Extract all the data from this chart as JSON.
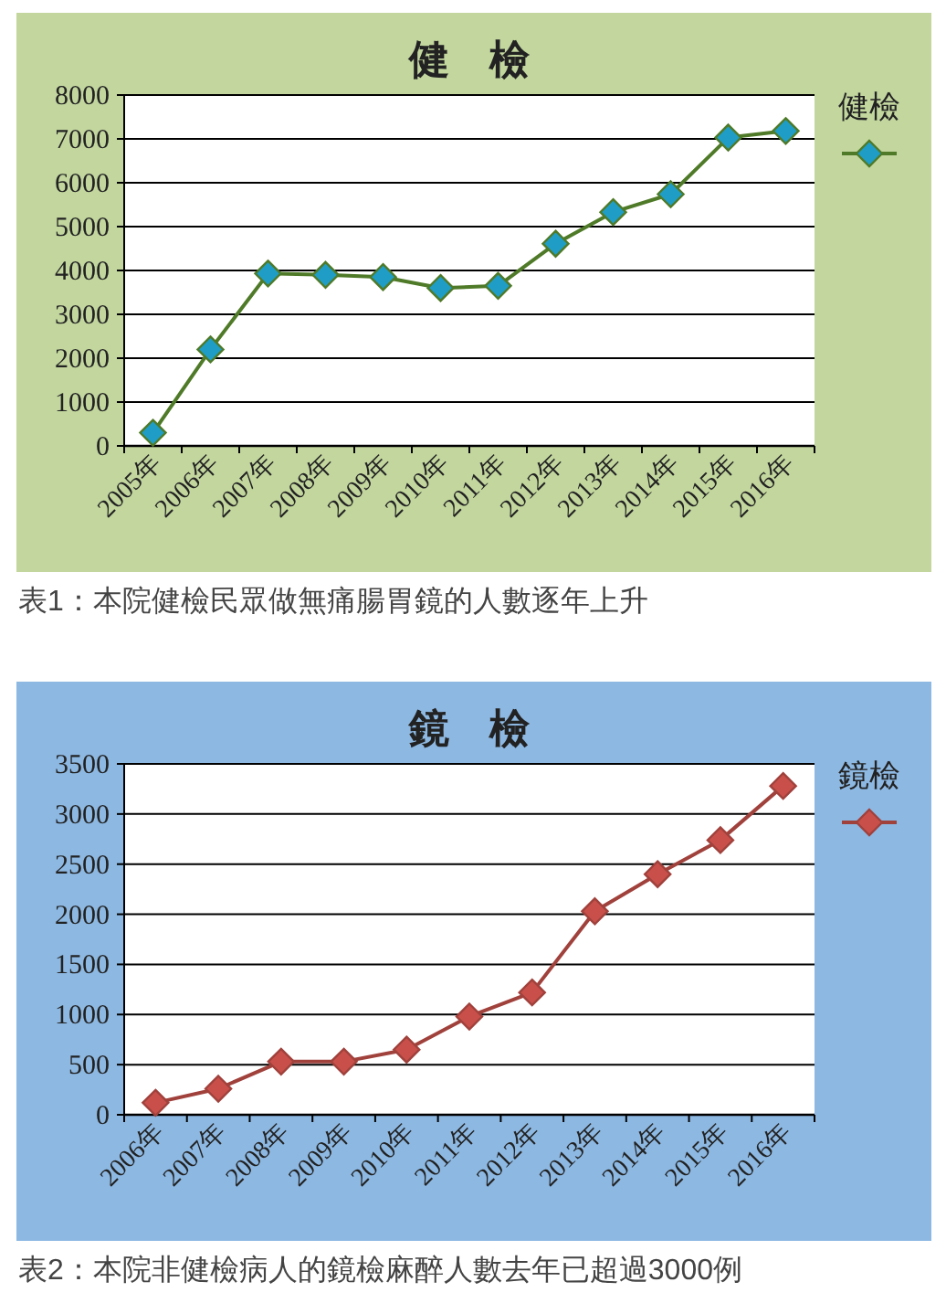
{
  "chart_data": [
    {
      "type": "line",
      "title": "健　檢",
      "categories": [
        "2005年",
        "2006年",
        "2007年",
        "2008年",
        "2009年",
        "2010年",
        "2011年",
        "2012年",
        "2013年",
        "2014年",
        "2015年",
        "2016年"
      ],
      "series": [
        {
          "name": "健檢",
          "color": "#4f7a28",
          "values": [
            300,
            2200,
            3930,
            3900,
            3850,
            3600,
            3650,
            4610,
            5330,
            5740,
            7030,
            7180
          ]
        }
      ],
      "ylim": [
        0,
        8000
      ],
      "yticks": [
        0,
        1000,
        2000,
        3000,
        4000,
        5000,
        6000,
        7000,
        8000
      ],
      "grid": "y",
      "legend": "right",
      "marker": "diamond",
      "annotations": [
        "表1：本院健檢民眾做無痛腸胃鏡的人數逐年上升"
      ]
    },
    {
      "type": "line",
      "title": "鏡　檢",
      "categories": [
        "2006年",
        "2007年",
        "2008年",
        "2009年",
        "2010年",
        "2011年",
        "2012年",
        "2013年",
        "2014年",
        "2015年",
        "2016年"
      ],
      "series": [
        {
          "name": "鏡檢",
          "color": "#a0413c",
          "values": [
            120,
            260,
            530,
            530,
            650,
            980,
            1220,
            2030,
            2400,
            2740,
            3280
          ]
        }
      ],
      "ylim": [
        0,
        3500
      ],
      "yticks": [
        0,
        500,
        1000,
        1500,
        2000,
        2500,
        3000,
        3500
      ],
      "grid": "y",
      "legend": "right",
      "marker": "diamond",
      "annotations": [
        "表2：本院非健檢病人的鏡檢麻醉人數去年已超過3000例"
      ]
    }
  ]
}
